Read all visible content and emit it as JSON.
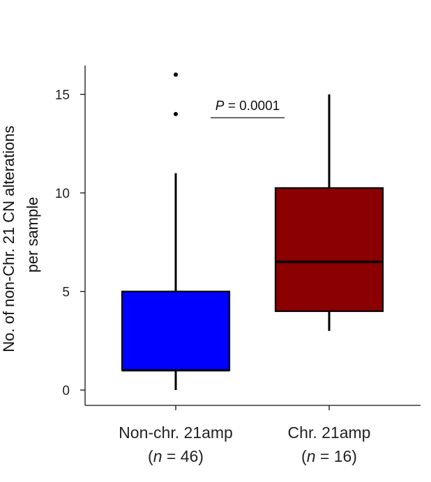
{
  "chart_data": {
    "type": "box",
    "ylabel_line1": "No. of non-Chr. 21 CN alterations",
    "ylabel_line2": "per sample",
    "ylim": [
      0,
      16.5
    ],
    "yticks": [
      0,
      5,
      10,
      15
    ],
    "grid": false,
    "groups": [
      {
        "label": "Non-chr. 21amp",
        "n_prefix": "(",
        "n_var": "n",
        "n_suffix": " = 46)",
        "color": "#0000ff",
        "whisker_low": 0,
        "q1": 1,
        "median": 1,
        "q3": 5,
        "whisker_high": 11,
        "outliers": [
          14,
          16
        ]
      },
      {
        "label": "Chr. 21amp",
        "n_prefix": "(",
        "n_var": "n",
        "n_suffix": " = 16)",
        "color": "#8b0000",
        "whisker_low": 3,
        "q1": 4,
        "median": 6.5,
        "q3": 10.25,
        "whisker_high": 15,
        "outliers": []
      }
    ],
    "annotation": {
      "p_label": "P",
      "p_value_text": " = 0.0001"
    }
  }
}
